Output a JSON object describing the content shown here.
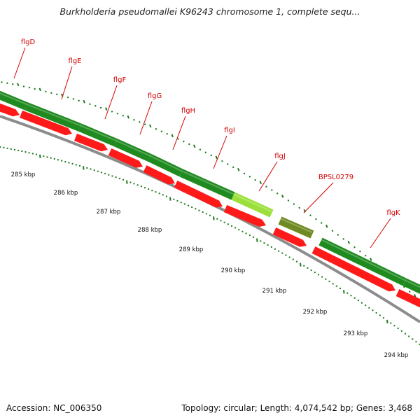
{
  "title": "Burkholderia pseudomallei K96243 chromosome 1, complete sequ...",
  "colors": {
    "gene_track": "#1f8a1f",
    "gene_highlight": "#9be03a",
    "gene_other": "#6f8a22",
    "cds_arrow": "#ff1a1a",
    "label": "#d40000",
    "tick": "#1f7a1f",
    "backbone": "#8c8c8c"
  },
  "genes": [
    {
      "name": "flgD",
      "color": "gene_track"
    },
    {
      "name": "flgE",
      "color": "gene_track"
    },
    {
      "name": "flgF",
      "color": "gene_track"
    },
    {
      "name": "flgG",
      "color": "gene_track"
    },
    {
      "name": "flgH",
      "color": "gene_track"
    },
    {
      "name": "flgI",
      "color": "gene_track"
    },
    {
      "name": "flgJ",
      "color": "gene_highlight"
    },
    {
      "name": "BPSL0279",
      "color": "gene_other"
    },
    {
      "name": "flgK",
      "color": "gene_track"
    }
  ],
  "scale_labels": [
    "285 kbp",
    "286 kbp",
    "287 kbp",
    "288 kbp",
    "289 kbp",
    "290 kbp",
    "291 kbp",
    "292 kbp",
    "293 kbp",
    "294 kbp"
  ],
  "footer": {
    "accession": "Accession: NC_006350",
    "summary": "Topology: circular; Length: 4,074,542 bp; Genes: 3,468"
  }
}
